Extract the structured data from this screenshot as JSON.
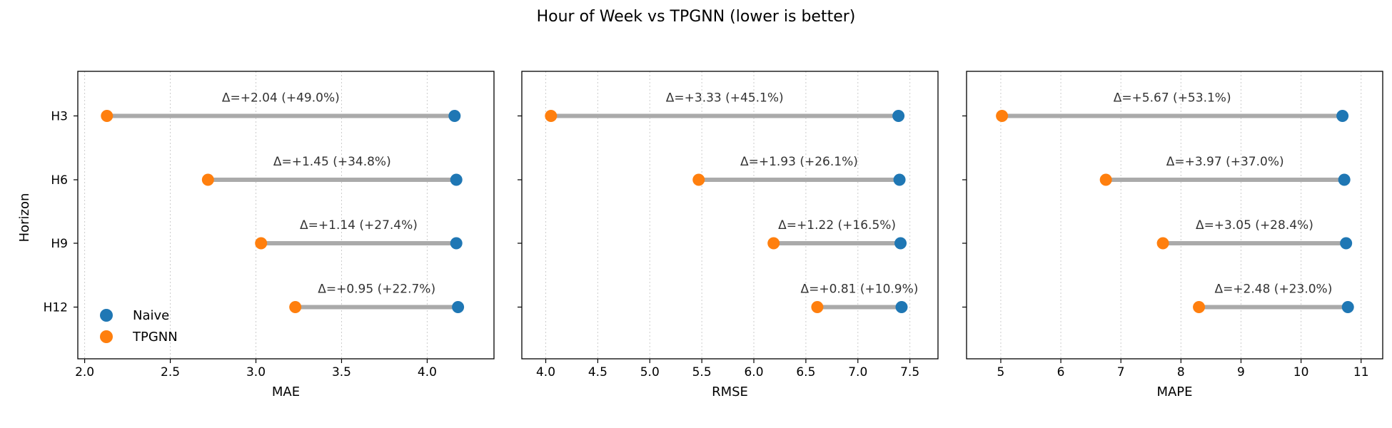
{
  "chart_data": {
    "title": "Hour of Week vs TPGNN (lower is better)",
    "ylabel": "Horizon",
    "categories": [
      "H3",
      "H6",
      "H9",
      "H12"
    ],
    "series_names": [
      "Naive",
      "TPGNN"
    ],
    "colors": {
      "Naive": "#1f77b4",
      "TPGNN": "#ff7f0e",
      "connector": "#aaaaaa",
      "grid": "#cccccc"
    },
    "legend_position": "lower-left (first panel)",
    "panels": [
      {
        "type": "dumbbell",
        "xlabel": "MAE",
        "xlim": [
          1.96,
          4.39
        ],
        "xticks": [
          2.0,
          2.5,
          3.0,
          3.5,
          4.0
        ],
        "tick_labels": [
          "2.0",
          "2.5",
          "3.0",
          "3.5",
          "4.0"
        ],
        "naive": [
          4.16,
          4.17,
          4.17,
          4.18
        ],
        "tpgnn": [
          2.13,
          2.72,
          3.03,
          3.23
        ],
        "delta_labels": [
          "Δ=+2.04 (+49.0%)",
          "Δ=+1.45 (+34.8%)",
          "Δ=+1.14 (+27.4%)",
          "Δ=+0.95 (+22.7%)"
        ]
      },
      {
        "type": "dumbbell",
        "xlabel": "RMSE",
        "xlim": [
          3.77,
          7.77
        ],
        "xticks": [
          4.0,
          4.5,
          5.0,
          5.5,
          6.0,
          6.5,
          7.0,
          7.5
        ],
        "tick_labels": [
          "4.0",
          "4.5",
          "5.0",
          "5.5",
          "6.0",
          "6.5",
          "7.0",
          "7.5"
        ],
        "naive": [
          7.39,
          7.4,
          7.41,
          7.42
        ],
        "tpgnn": [
          4.05,
          5.47,
          6.19,
          6.61
        ],
        "delta_labels": [
          "Δ=+3.33 (+45.1%)",
          "Δ=+1.93 (+26.1%)",
          "Δ=+1.22 (+16.5%)",
          "Δ=+0.81 (+10.9%)"
        ]
      },
      {
        "type": "dumbbell",
        "xlabel": "MAPE",
        "xlim": [
          4.43,
          11.36
        ],
        "xticks": [
          5,
          6,
          7,
          8,
          9,
          10,
          11
        ],
        "tick_labels": [
          "5",
          "6",
          "7",
          "8",
          "9",
          "10",
          "11"
        ],
        "naive": [
          10.69,
          10.72,
          10.75,
          10.78
        ],
        "tpgnn": [
          5.02,
          6.75,
          7.7,
          8.3
        ],
        "delta_labels": [
          "Δ=+5.67 (+53.1%)",
          "Δ=+3.97 (+37.0%)",
          "Δ=+3.05 (+28.4%)",
          "Δ=+2.48 (+23.0%)"
        ]
      }
    ]
  }
}
